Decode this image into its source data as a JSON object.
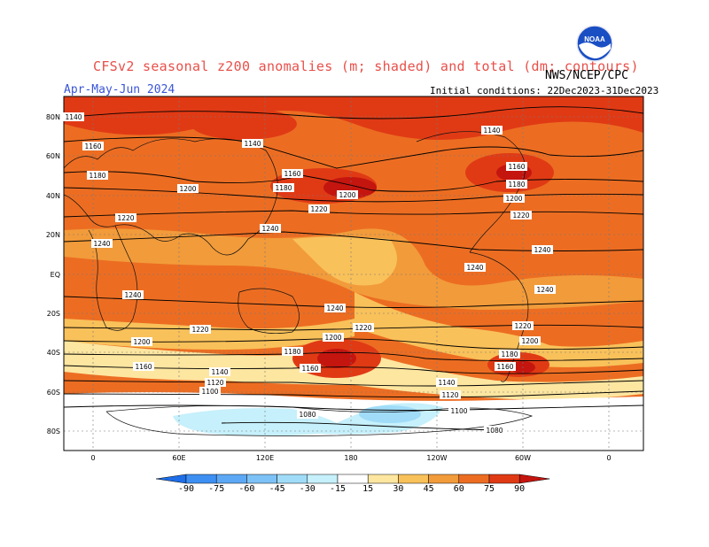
{
  "header": {
    "title": "CFSv2 seasonal z200 anomalies (m; shaded) and total (dm; contours)",
    "agency": "NWS/NCEP/CPC",
    "period": "Apr-May-Jun 2024",
    "initial_conditions": "Initial conditions: 22Dec2023-31Dec2023",
    "logo_text": "NOAA"
  },
  "map": {
    "lat_labels": [
      "80N",
      "60N",
      "40N",
      "20N",
      "EQ",
      "20S",
      "40S",
      "60S",
      "80S"
    ],
    "lon_labels": [
      "0",
      "60E",
      "120E",
      "180",
      "120W",
      "60W",
      "0"
    ],
    "contour_labels": [
      "1140",
      "1160",
      "1180",
      "1200",
      "1220",
      "1240",
      "1120",
      "1100",
      "1080"
    ]
  },
  "colorbar": {
    "labels": [
      "-90",
      "-75",
      "-60",
      "-45",
      "-30",
      "-15",
      "15",
      "30",
      "45",
      "60",
      "75",
      "90"
    ],
    "colors": [
      "#1e6ee8",
      "#3d8ff2",
      "#5da8f5",
      "#7dc2f7",
      "#a0dcf8",
      "#c6f0fb",
      "#ffffff",
      "#fde6a0",
      "#f9c15a",
      "#f29b3a",
      "#ec6d22",
      "#e03a15",
      "#c4150f"
    ]
  },
  "colors": {
    "title": "#e8504a",
    "period": "#3a55d6"
  }
}
